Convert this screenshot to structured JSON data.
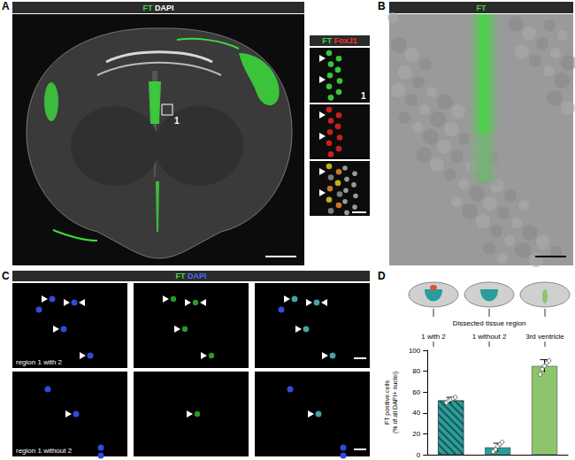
{
  "panels": {
    "A": {
      "letter": "A",
      "header": [
        "FT",
        "DAPI"
      ],
      "inset_header": [
        "FT",
        "FoxJ1"
      ],
      "box_label": "1",
      "inset_label": "1"
    },
    "B": {
      "letter": "B",
      "header": [
        "FT"
      ]
    },
    "C": {
      "letter": "C",
      "header": [
        "FT",
        "DAPI"
      ],
      "rows": [
        "region 1 with 2",
        "region 1 without 2"
      ]
    },
    "D": {
      "letter": "D",
      "schematic_caption": "Dissected tissue region"
    }
  },
  "chart_data": {
    "type": "bar",
    "categories": [
      "1 with 2",
      "1 without 2",
      "3rd ventricle"
    ],
    "values": [
      52,
      7,
      85
    ],
    "errors": [
      3,
      4,
      6
    ],
    "points": [
      [
        50,
        52,
        53,
        54,
        55
      ],
      [
        3,
        5,
        8,
        10,
        12
      ],
      [
        77,
        82,
        85,
        88,
        90
      ]
    ],
    "colors": [
      "#2a9d9a",
      "#2a9d9a",
      "#8cc56b"
    ],
    "ylabel": "FT positive cells\n(% of all DAPI+ nuclei)",
    "ylim": [
      0,
      100
    ],
    "yticks": [
      0,
      20,
      40,
      60,
      80,
      100
    ],
    "tick_labels": "y"
  }
}
